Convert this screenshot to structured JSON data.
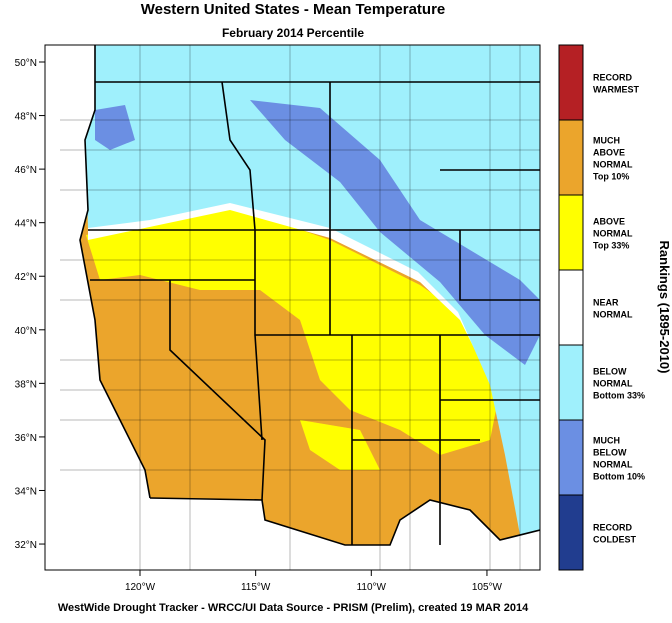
{
  "title": "Western United States - Mean Temperature",
  "subtitle": "February 2014 Percentile",
  "lat_ticks": [
    {
      "value": 50,
      "label": "50°N"
    },
    {
      "value": 48,
      "label": "48°N"
    },
    {
      "value": 46,
      "label": "46°N"
    },
    {
      "value": 44,
      "label": "44°N"
    },
    {
      "value": 42,
      "label": "42°N"
    },
    {
      "value": 40,
      "label": "40°N"
    },
    {
      "value": 38,
      "label": "38°N"
    },
    {
      "value": 36,
      "label": "36°N"
    },
    {
      "value": 34,
      "label": "34°N"
    },
    {
      "value": 32,
      "label": "32°N"
    }
  ],
  "lon_ticks": [
    {
      "value": -120,
      "label": "120°W"
    },
    {
      "value": -115,
      "label": "115°W"
    },
    {
      "value": -110,
      "label": "110°W"
    },
    {
      "value": -105,
      "label": "105°W"
    }
  ],
  "legend": {
    "title": "Rankings (1895-2010)",
    "items": [
      {
        "lines": [
          "RECORD",
          "WARMEST"
        ],
        "color": "#b52024"
      },
      {
        "lines": [
          "MUCH",
          "ABOVE",
          "NORMAL",
          "Top 10%"
        ],
        "color": "#eba52c"
      },
      {
        "lines": [
          "ABOVE",
          "NORMAL",
          "Top 33%"
        ],
        "color": "#ffff00"
      },
      {
        "lines": [
          "NEAR",
          "NORMAL"
        ],
        "color": "#ffffff"
      },
      {
        "lines": [
          "BELOW",
          "NORMAL",
          "Bottom 33%"
        ],
        "color": "#9ff0fc"
      },
      {
        "lines": [
          "MUCH",
          "BELOW",
          "NORMAL",
          "Bottom 10%"
        ],
        "color": "#6b8fe3"
      },
      {
        "lines": [
          "RECORD",
          "COLDEST"
        ],
        "color": "#213d8f"
      }
    ]
  },
  "footer": "WestWide Drought Tracker - WRCC/UI  Data Source - PRISM (Prelim), created 19 MAR 2014"
}
